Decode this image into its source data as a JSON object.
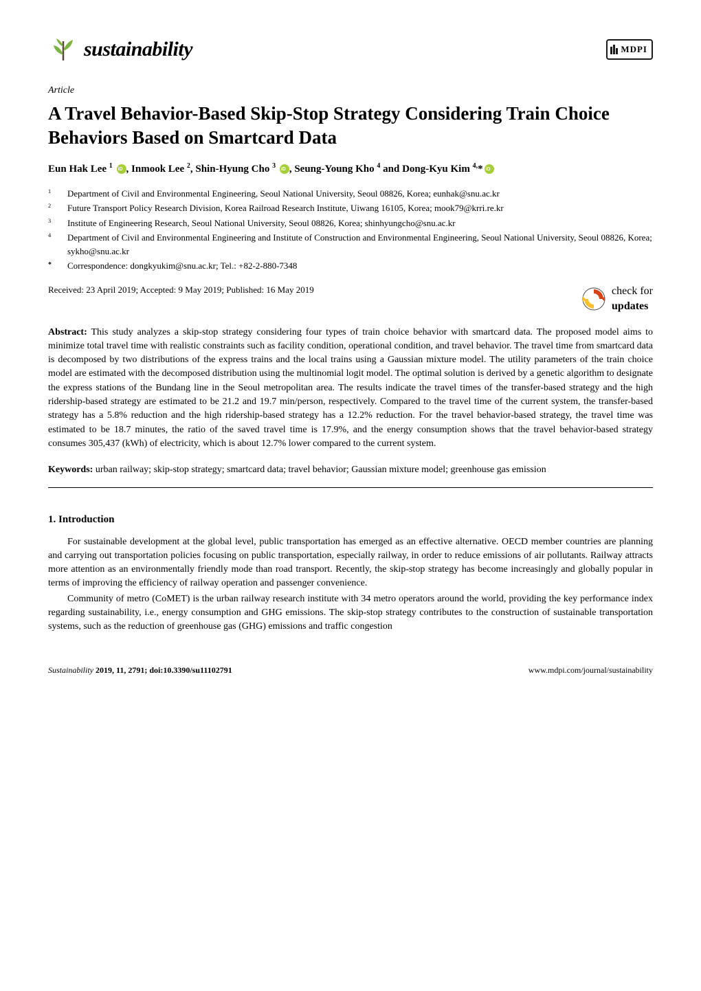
{
  "journal": {
    "name": "sustainability",
    "logo_leaf_color": "#7cb342",
    "logo_branch_color": "#5d4037",
    "publisher": "MDPI"
  },
  "article": {
    "type": "Article",
    "title": "A Travel Behavior-Based Skip-Stop Strategy Considering Train Choice Behaviors Based on Smartcard Data"
  },
  "authors_html": "Eun Hak Lee <sup>1</sup> <span class='orcid'></span>, Inmook Lee <sup>2</sup>, Shin-Hyung Cho <sup>3</sup> <span class='orcid'></span>, Seung-Young Kho <sup>4</sup> and Dong-Kyu Kim <sup>4,</sup>*<span class='orcid'></span>",
  "affiliations": [
    {
      "num": "1",
      "text": "Department of Civil and Environmental Engineering, Seoul National University, Seoul 08826, Korea; eunhak@snu.ac.kr"
    },
    {
      "num": "2",
      "text": "Future Transport Policy Research Division, Korea Railroad Research Institute, Uiwang 16105, Korea; mook79@krri.re.kr"
    },
    {
      "num": "3",
      "text": "Institute of Engineering Research, Seoul National University, Seoul 08826, Korea; shinhyungcho@snu.ac.kr"
    },
    {
      "num": "4",
      "text": "Department of Civil and Environmental Engineering and Institute of Construction and Environmental Engineering, Seoul National University, Seoul 08826, Korea; sykho@snu.ac.kr"
    },
    {
      "num": "*",
      "text": "Correspondence: dongkyukim@snu.ac.kr; Tel.: +82-2-880-7348"
    }
  ],
  "dates": "Received: 23 April 2019; Accepted: 9 May 2019; Published: 16 May 2019",
  "check_updates": {
    "line1": "check for",
    "line2": "updates"
  },
  "abstract": {
    "label": "Abstract:",
    "text": "This study analyzes a skip-stop strategy considering four types of train choice behavior with smartcard data. The proposed model aims to minimize total travel time with realistic constraints such as facility condition, operational condition, and travel behavior. The travel time from smartcard data is decomposed by two distributions of the express trains and the local trains using a Gaussian mixture model. The utility parameters of the train choice model are estimated with the decomposed distribution using the multinomial logit model. The optimal solution is derived by a genetic algorithm to designate the express stations of the Bundang line in the Seoul metropolitan area. The results indicate the travel times of the transfer-based strategy and the high ridership-based strategy are estimated to be 21.2 and 19.7 min/person, respectively. Compared to the travel time of the current system, the transfer-based strategy has a 5.8% reduction and the high ridership-based strategy has a 12.2% reduction. For the travel behavior-based strategy, the travel time was estimated to be 18.7 minutes, the ratio of the saved travel time is 17.9%, and the energy consumption shows that the travel behavior-based strategy consumes 305,437 (kWh) of electricity, which is about 12.7% lower compared to the current system."
  },
  "keywords": {
    "label": "Keywords:",
    "text": "urban railway; skip-stop strategy; smartcard data; travel behavior; Gaussian mixture model; greenhouse gas emission"
  },
  "section1": {
    "heading": "1. Introduction",
    "p1": "For sustainable development at the global level, public transportation has emerged as an effective alternative. OECD member countries are planning and carrying out transportation policies focusing on public transportation, especially railway, in order to reduce emissions of air pollutants. Railway attracts more attention as an environmentally friendly mode than road transport. Recently, the skip-stop strategy has become increasingly and globally popular in terms of improving the efficiency of railway operation and passenger convenience.",
    "p2": "Community of metro (CoMET) is the urban railway research institute with 34 metro operators around the world, providing the key performance index regarding sustainability, i.e., energy consumption and GHG emissions. The skip-stop strategy contributes to the construction of sustainable transportation systems, such as the reduction of greenhouse gas (GHG) emissions and traffic congestion"
  },
  "footer": {
    "left_journal": "Sustainability",
    "left_rest": " 2019, 11, 2791; doi:10.3390/su11102791",
    "right": "www.mdpi.com/journal/sustainability"
  },
  "colors": {
    "text": "#000000",
    "bg": "#ffffff",
    "orcid": "#a6ce39",
    "check_outer": "#444444",
    "check_inner": "#d84315"
  }
}
